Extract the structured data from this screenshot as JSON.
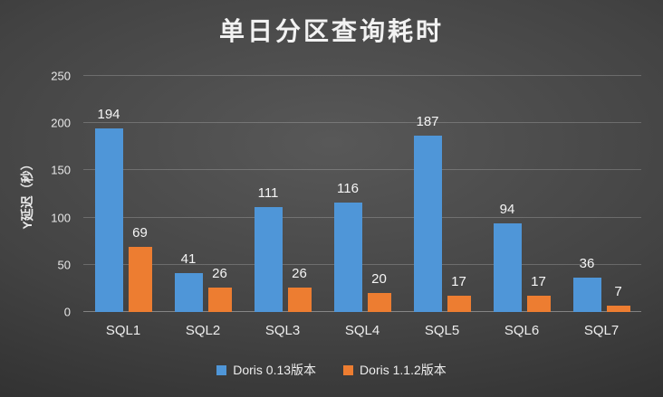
{
  "chart_data": {
    "type": "bar",
    "title": "单日分区查询耗时",
    "ylabel": "Y延迟（秒）",
    "xlabel": "",
    "categories": [
      "SQL1",
      "SQL2",
      "SQL3",
      "SQL4",
      "SQL5",
      "SQL6",
      "SQL7"
    ],
    "series": [
      {
        "name": "Doris 0.13版本",
        "color": "#4f96d8",
        "values": [
          194,
          41,
          111,
          116,
          187,
          94,
          36
        ]
      },
      {
        "name": "Doris 1.1.2版本",
        "color": "#ed7d31",
        "values": [
          69,
          26,
          26,
          20,
          17,
          17,
          7
        ]
      }
    ],
    "ylim": [
      0,
      250
    ],
    "yticks": [
      0,
      50,
      100,
      150,
      200,
      250
    ],
    "grid": true,
    "legend_position": "bottom",
    "text_color": "#f2f2f2",
    "background_style": "dark radial gradient"
  }
}
